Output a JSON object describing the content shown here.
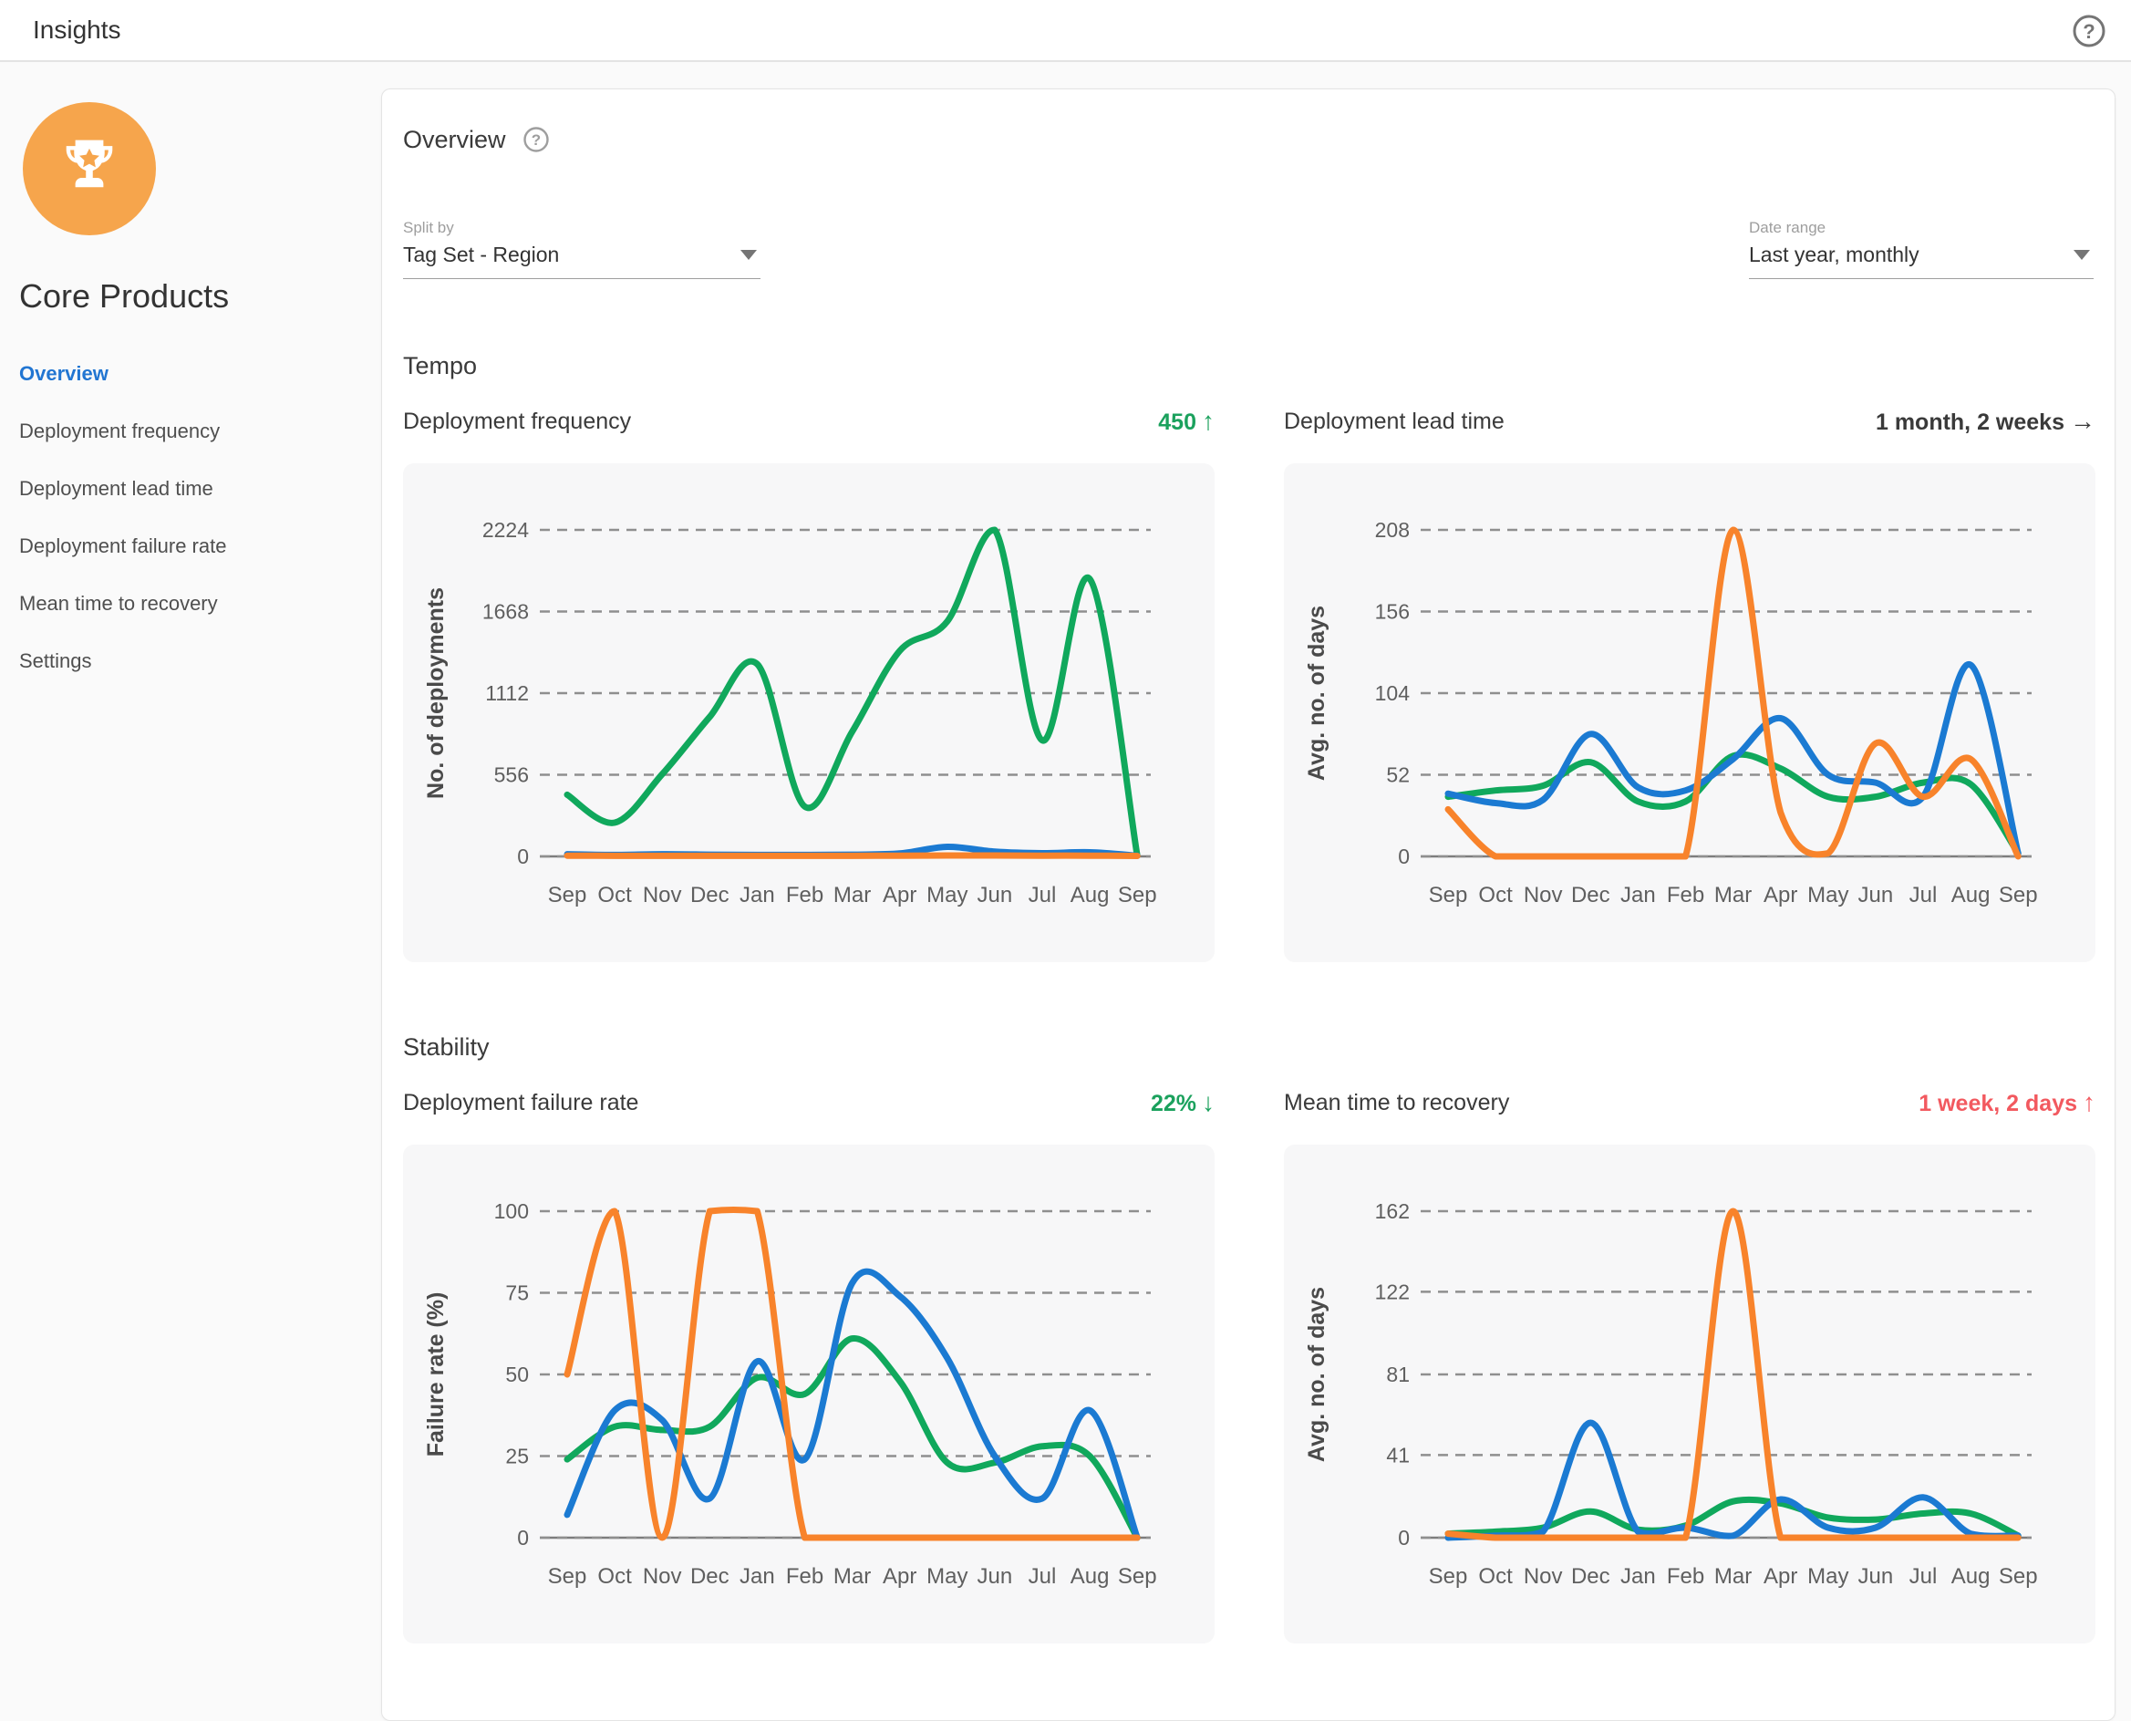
{
  "header": {
    "title": "Insights"
  },
  "icons": {
    "header_help": "help-icon",
    "overview_help": "help-icon",
    "avatar": "trophy-icon",
    "select_caret": "chevron-down-icon"
  },
  "sidebar": {
    "title": "Core Products",
    "items": [
      {
        "label": "Overview",
        "active": true
      },
      {
        "label": "Deployment frequency",
        "active": false
      },
      {
        "label": "Deployment lead time",
        "active": false
      },
      {
        "label": "Deployment failure rate",
        "active": false
      },
      {
        "label": "Mean time to recovery",
        "active": false
      },
      {
        "label": "Settings",
        "active": false
      }
    ]
  },
  "overview": {
    "title": "Overview",
    "split_by": {
      "label": "Split by",
      "value": "Tag Set - Region"
    },
    "date_range": {
      "label": "Date range",
      "value": "Last year, monthly"
    }
  },
  "sections": [
    {
      "title": "Tempo"
    },
    {
      "title": "Stability"
    }
  ],
  "colors": {
    "series_green": "#10a85c",
    "series_blue": "#1b7ad2",
    "series_orange": "#f8832b",
    "metric_green": "#1ba15d",
    "metric_red": "#f2595f",
    "metric_dark": "#3a3a3a"
  },
  "chart_data": [
    {
      "type": "line",
      "title": "Deployment frequency",
      "metric": {
        "value": "450",
        "arrow": "↑",
        "color": "#1ba15d"
      },
      "ylabel": "No. of deployments",
      "xlabel": "",
      "categories": [
        "Sep",
        "Oct",
        "Nov",
        "Dec",
        "Jan",
        "Feb",
        "Mar",
        "Apr",
        "May",
        "Jun",
        "Jul",
        "Aug",
        "Sep"
      ],
      "yticks": [
        0,
        556,
        1112,
        1668,
        2224
      ],
      "ylim": [
        0,
        2224
      ],
      "grid": true,
      "legend": "none",
      "series": [
        {
          "color": "#10a85c",
          "values": [
            420,
            230,
            560,
            950,
            1310,
            340,
            850,
            1400,
            1600,
            2224,
            790,
            1890,
            5
          ]
        },
        {
          "color": "#1b7ad2",
          "values": [
            15,
            10,
            15,
            12,
            10,
            10,
            12,
            20,
            65,
            32,
            22,
            28,
            5
          ]
        },
        {
          "color": "#f8832b",
          "values": [
            5,
            4,
            4,
            4,
            4,
            4,
            4,
            5,
            6,
            6,
            5,
            5,
            3
          ]
        }
      ]
    },
    {
      "type": "line",
      "title": "Deployment lead time",
      "metric": {
        "value": "1 month, 2 weeks",
        "arrow": "→",
        "color": "#3a3a3a"
      },
      "ylabel": "Avg. no. of days",
      "xlabel": "",
      "categories": [
        "Sep",
        "Oct",
        "Nov",
        "Dec",
        "Jan",
        "Feb",
        "Mar",
        "Apr",
        "May",
        "Jun",
        "Jul",
        "Aug",
        "Sep"
      ],
      "yticks": [
        0,
        52,
        104,
        156,
        208
      ],
      "ylim": [
        0,
        208
      ],
      "grid": true,
      "legend": "none",
      "series": [
        {
          "color": "#10a85c",
          "values": [
            38,
            42,
            45,
            60,
            35,
            35,
            64,
            56,
            38,
            38,
            47,
            46,
            2
          ]
        },
        {
          "color": "#1b7ad2",
          "values": [
            40,
            34,
            36,
            78,
            44,
            42,
            62,
            88,
            52,
            47,
            38,
            122,
            2
          ]
        },
        {
          "color": "#f8832b",
          "values": [
            30,
            0,
            0,
            0,
            0,
            0,
            208,
            28,
            2,
            72,
            38,
            62,
            0
          ]
        }
      ]
    },
    {
      "type": "line",
      "title": "Deployment failure rate",
      "metric": {
        "value": "22%",
        "arrow": "↓",
        "color": "#1ba15d"
      },
      "ylabel": "Failure rate (%)",
      "xlabel": "",
      "categories": [
        "Sep",
        "Oct",
        "Nov",
        "Dec",
        "Jan",
        "Feb",
        "Mar",
        "Apr",
        "May",
        "Jun",
        "Jul",
        "Aug",
        "Sep"
      ],
      "yticks": [
        0,
        25,
        50,
        75,
        100
      ],
      "ylim": [
        0,
        100
      ],
      "grid": true,
      "legend": "none",
      "series": [
        {
          "color": "#10a85c",
          "values": [
            24,
            34,
            33,
            34,
            49,
            44,
            61,
            48,
            23,
            23,
            28,
            25,
            0
          ]
        },
        {
          "color": "#1b7ad2",
          "values": [
            7,
            39,
            36,
            12,
            54,
            24,
            78,
            74,
            55,
            25,
            12,
            39,
            0
          ]
        },
        {
          "color": "#f8832b",
          "values": [
            50,
            100,
            0,
            100,
            100,
            0,
            0,
            0,
            0,
            0,
            0,
            0,
            0
          ]
        }
      ]
    },
    {
      "type": "line",
      "title": "Mean time to recovery",
      "metric": {
        "value": "1 week, 2 days",
        "arrow": "↑",
        "color": "#f2595f"
      },
      "ylabel": "Avg. no. of days",
      "xlabel": "",
      "categories": [
        "Sep",
        "Oct",
        "Nov",
        "Dec",
        "Jan",
        "Feb",
        "Mar",
        "Apr",
        "May",
        "Jun",
        "Jul",
        "Aug",
        "Sep"
      ],
      "yticks": [
        0,
        41,
        81,
        122,
        162
      ],
      "ylim": [
        0,
        162
      ],
      "grid": true,
      "legend": "none",
      "series": [
        {
          "color": "#10a85c",
          "values": [
            2,
            3,
            5,
            13,
            4,
            6,
            18,
            17,
            10,
            9,
            12,
            12,
            1
          ]
        },
        {
          "color": "#1b7ad2",
          "values": [
            0,
            1,
            3,
            57,
            3,
            5,
            1,
            19,
            5,
            5,
            20,
            2,
            1
          ]
        },
        {
          "color": "#f8832b",
          "values": [
            2,
            0,
            0,
            0,
            0,
            0,
            162,
            0,
            0,
            0,
            0,
            0,
            0
          ]
        }
      ]
    }
  ]
}
